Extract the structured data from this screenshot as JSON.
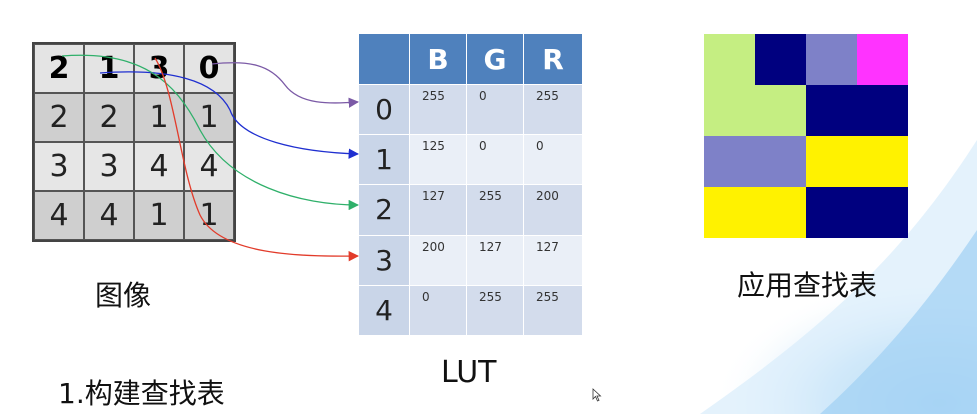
{
  "image_grid": {
    "caption": "图像",
    "rows": [
      [
        "2",
        "1",
        "3",
        "0"
      ],
      [
        "2",
        "2",
        "1",
        "1"
      ],
      [
        "3",
        "3",
        "4",
        "4"
      ],
      [
        "4",
        "4",
        "1",
        "1"
      ]
    ]
  },
  "lut": {
    "caption": "LUT",
    "headers": [
      "B",
      "G",
      "R"
    ],
    "rows": [
      {
        "index": "0",
        "b": "255",
        "g": "0",
        "r": "255"
      },
      {
        "index": "1",
        "b": "125",
        "g": "0",
        "r": "0"
      },
      {
        "index": "2",
        "b": "127",
        "g": "255",
        "r": "200"
      },
      {
        "index": "3",
        "b": "200",
        "g": "127",
        "r": "127"
      },
      {
        "index": "4",
        "b": "0",
        "g": "255",
        "r": "255"
      }
    ]
  },
  "result": {
    "caption": "应用查找表",
    "colors": {
      "light_green": "#c5ee82",
      "navy": "#00007f",
      "lavender": "#7e81c8",
      "magenta": "#ff33ff",
      "yellow": "#fff200"
    }
  },
  "step_title": "1.构建查找表",
  "arrow_colors": {
    "purple": "#7b5aa6",
    "blue": "#1f2fd0",
    "green": "#2fb06a",
    "red": "#e23b2a"
  }
}
